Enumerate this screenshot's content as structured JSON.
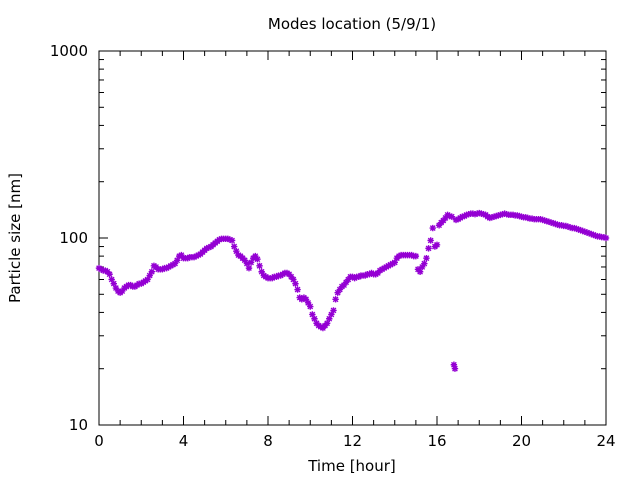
{
  "chart_data": {
    "type": "scatter",
    "title": "Modes location (5/9/1)",
    "xlabel": "Time [hour]",
    "ylabel": "Particle size [nm]",
    "xlim": [
      0,
      24
    ],
    "ylim": [
      10,
      1000
    ],
    "yscale": "log",
    "xticks": [
      "0",
      "4",
      "8",
      "12",
      "16",
      "20",
      "24"
    ],
    "yticks": [
      "10",
      "100",
      "1000"
    ],
    "grid": false,
    "marker": "star",
    "color": "#9400d3",
    "points": [
      [
        0.0,
        69
      ],
      [
        0.1,
        68
      ],
      [
        0.2,
        67
      ],
      [
        0.3,
        67
      ],
      [
        0.4,
        66
      ],
      [
        0.5,
        64
      ],
      [
        0.6,
        60
      ],
      [
        0.7,
        57
      ],
      [
        0.8,
        54
      ],
      [
        0.9,
        52
      ],
      [
        1.0,
        51
      ],
      [
        1.1,
        52
      ],
      [
        1.2,
        54
      ],
      [
        1.3,
        55
      ],
      [
        1.4,
        56
      ],
      [
        1.5,
        56
      ],
      [
        1.6,
        55
      ],
      [
        1.7,
        55
      ],
      [
        1.8,
        56
      ],
      [
        1.9,
        57
      ],
      [
        2.0,
        57
      ],
      [
        2.1,
        58
      ],
      [
        2.2,
        59
      ],
      [
        2.3,
        60
      ],
      [
        2.4,
        63
      ],
      [
        2.5,
        66
      ],
      [
        2.6,
        71
      ],
      [
        2.7,
        70
      ],
      [
        2.8,
        68
      ],
      [
        2.9,
        68
      ],
      [
        3.0,
        68
      ],
      [
        3.1,
        69
      ],
      [
        3.2,
        69
      ],
      [
        3.3,
        70
      ],
      [
        3.4,
        71
      ],
      [
        3.5,
        72
      ],
      [
        3.6,
        73
      ],
      [
        3.7,
        76
      ],
      [
        3.8,
        80
      ],
      [
        3.9,
        81
      ],
      [
        4.0,
        78
      ],
      [
        4.1,
        78
      ],
      [
        4.2,
        78
      ],
      [
        4.3,
        79
      ],
      [
        4.4,
        79
      ],
      [
        4.5,
        79
      ],
      [
        4.6,
        80
      ],
      [
        4.7,
        81
      ],
      [
        4.8,
        82
      ],
      [
        4.9,
        84
      ],
      [
        5.0,
        86
      ],
      [
        5.1,
        88
      ],
      [
        5.2,
        89
      ],
      [
        5.3,
        90
      ],
      [
        5.4,
        92
      ],
      [
        5.5,
        94
      ],
      [
        5.6,
        96
      ],
      [
        5.7,
        98
      ],
      [
        5.8,
        99
      ],
      [
        5.9,
        99
      ],
      [
        6.0,
        99
      ],
      [
        6.1,
        99
      ],
      [
        6.2,
        98
      ],
      [
        6.3,
        97
      ],
      [
        6.4,
        90
      ],
      [
        6.5,
        85
      ],
      [
        6.6,
        81
      ],
      [
        6.7,
        80
      ],
      [
        6.8,
        78
      ],
      [
        6.9,
        76
      ],
      [
        7.0,
        73
      ],
      [
        7.1,
        69
      ],
      [
        7.2,
        74
      ],
      [
        7.3,
        78
      ],
      [
        7.4,
        80
      ],
      [
        7.5,
        77
      ],
      [
        7.6,
        71
      ],
      [
        7.7,
        66
      ],
      [
        7.8,
        63
      ],
      [
        7.9,
        62
      ],
      [
        8.0,
        61
      ],
      [
        8.1,
        61
      ],
      [
        8.2,
        61
      ],
      [
        8.3,
        62
      ],
      [
        8.4,
        62
      ],
      [
        8.5,
        63
      ],
      [
        8.6,
        63
      ],
      [
        8.7,
        64
      ],
      [
        8.8,
        65
      ],
      [
        8.9,
        65
      ],
      [
        9.0,
        64
      ],
      [
        9.1,
        62
      ],
      [
        9.2,
        60
      ],
      [
        9.3,
        57
      ],
      [
        9.4,
        53
      ],
      [
        9.5,
        48
      ],
      [
        9.6,
        47
      ],
      [
        9.7,
        48
      ],
      [
        9.8,
        47
      ],
      [
        9.9,
        45
      ],
      [
        10.0,
        43
      ],
      [
        10.1,
        39
      ],
      [
        10.2,
        37
      ],
      [
        10.3,
        35
      ],
      [
        10.4,
        34
      ],
      [
        10.5,
        33.5
      ],
      [
        10.6,
        33
      ],
      [
        10.7,
        34
      ],
      [
        10.8,
        35
      ],
      [
        10.9,
        37
      ],
      [
        11.0,
        39
      ],
      [
        11.1,
        41
      ],
      [
        11.2,
        47
      ],
      [
        11.3,
        51
      ],
      [
        11.4,
        53
      ],
      [
        11.5,
        55
      ],
      [
        11.6,
        56
      ],
      [
        11.7,
        58
      ],
      [
        11.8,
        60
      ],
      [
        11.9,
        62
      ],
      [
        12.0,
        62
      ],
      [
        12.1,
        61
      ],
      [
        12.2,
        62
      ],
      [
        12.3,
        62
      ],
      [
        12.4,
        63
      ],
      [
        12.5,
        63
      ],
      [
        12.6,
        63
      ],
      [
        12.7,
        64
      ],
      [
        12.8,
        64
      ],
      [
        12.9,
        65
      ],
      [
        13.0,
        64
      ],
      [
        13.1,
        64
      ],
      [
        13.2,
        65
      ],
      [
        13.3,
        67
      ],
      [
        13.4,
        68
      ],
      [
        13.5,
        69
      ],
      [
        13.6,
        70
      ],
      [
        13.7,
        71
      ],
      [
        13.8,
        72
      ],
      [
        13.9,
        73
      ],
      [
        14.0,
        74
      ],
      [
        14.1,
        78
      ],
      [
        14.2,
        80
      ],
      [
        14.3,
        81
      ],
      [
        14.4,
        81
      ],
      [
        14.5,
        81
      ],
      [
        14.6,
        81
      ],
      [
        14.7,
        81
      ],
      [
        14.8,
        81
      ],
      [
        14.9,
        80
      ],
      [
        15.0,
        80
      ],
      [
        15.1,
        68
      ],
      [
        15.2,
        66
      ],
      [
        15.3,
        70
      ],
      [
        15.4,
        73
      ],
      [
        15.5,
        78
      ],
      [
        15.6,
        88
      ],
      [
        15.7,
        97
      ],
      [
        15.8,
        113
      ],
      [
        15.9,
        90
      ],
      [
        16.0,
        92
      ],
      [
        16.1,
        117
      ],
      [
        16.2,
        121
      ],
      [
        16.3,
        124
      ],
      [
        16.4,
        128
      ],
      [
        16.5,
        133
      ],
      [
        16.6,
        131
      ],
      [
        16.7,
        130
      ],
      [
        16.8,
        21
      ],
      [
        16.85,
        20
      ],
      [
        16.9,
        125
      ],
      [
        17.0,
        126
      ],
      [
        17.1,
        128
      ],
      [
        17.2,
        130
      ],
      [
        17.3,
        131
      ],
      [
        17.4,
        133
      ],
      [
        17.5,
        134
      ],
      [
        17.6,
        135
      ],
      [
        17.7,
        135
      ],
      [
        17.8,
        134
      ],
      [
        17.9,
        135
      ],
      [
        18.0,
        136
      ],
      [
        18.1,
        135
      ],
      [
        18.2,
        134
      ],
      [
        18.3,
        133
      ],
      [
        18.4,
        130
      ],
      [
        18.5,
        128
      ],
      [
        18.6,
        129
      ],
      [
        18.7,
        130
      ],
      [
        18.8,
        131
      ],
      [
        18.9,
        132
      ],
      [
        19.0,
        133
      ],
      [
        19.1,
        134
      ],
      [
        19.2,
        135
      ],
      [
        19.3,
        134
      ],
      [
        19.4,
        133
      ],
      [
        19.5,
        133
      ],
      [
        19.6,
        133
      ],
      [
        19.7,
        132
      ],
      [
        19.8,
        132
      ],
      [
        19.9,
        131
      ],
      [
        20.0,
        130
      ],
      [
        20.1,
        129
      ],
      [
        20.2,
        129
      ],
      [
        20.3,
        128
      ],
      [
        20.4,
        127
      ],
      [
        20.5,
        127
      ],
      [
        20.6,
        126
      ],
      [
        20.7,
        126
      ],
      [
        20.8,
        126
      ],
      [
        20.9,
        126
      ],
      [
        21.0,
        125
      ],
      [
        21.1,
        124
      ],
      [
        21.2,
        123
      ],
      [
        21.3,
        122
      ],
      [
        21.4,
        121
      ],
      [
        21.5,
        120
      ],
      [
        21.6,
        119
      ],
      [
        21.7,
        118
      ],
      [
        21.8,
        117
      ],
      [
        21.9,
        117
      ],
      [
        22.0,
        116
      ],
      [
        22.1,
        116
      ],
      [
        22.2,
        115
      ],
      [
        22.3,
        114
      ],
      [
        22.4,
        113
      ],
      [
        22.5,
        113
      ],
      [
        22.6,
        112
      ],
      [
        22.7,
        111
      ],
      [
        22.8,
        110
      ],
      [
        22.9,
        109
      ],
      [
        23.0,
        108
      ],
      [
        23.1,
        107
      ],
      [
        23.2,
        106
      ],
      [
        23.3,
        105
      ],
      [
        23.4,
        104
      ],
      [
        23.5,
        103
      ],
      [
        23.6,
        102
      ],
      [
        23.7,
        102
      ],
      [
        23.8,
        101
      ],
      [
        23.9,
        101
      ],
      [
        24.0,
        100
      ]
    ]
  }
}
